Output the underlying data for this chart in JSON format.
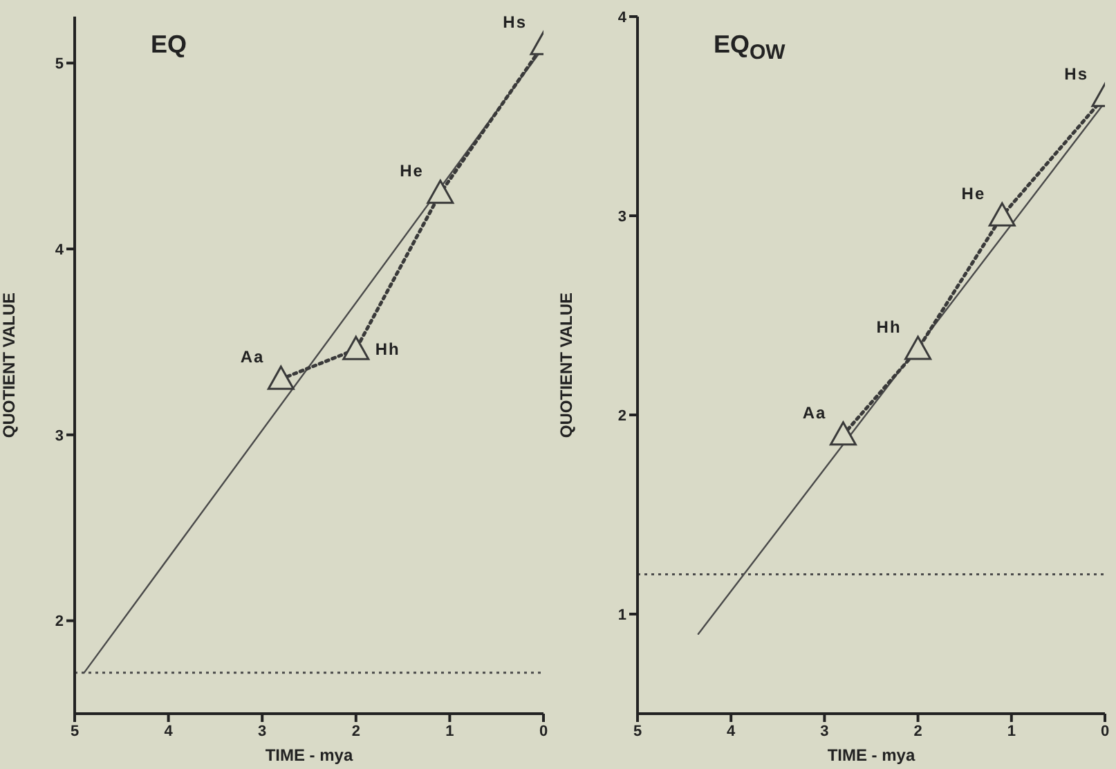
{
  "chart_data": [
    {
      "type": "line",
      "title": "EQ",
      "xlabel": "TIME - mya",
      "ylabel": "QUOTIENT VALUE",
      "xlim": [
        5,
        0
      ],
      "xticks": [
        5,
        4,
        3,
        2,
        1,
        0
      ],
      "ylim": [
        1.5,
        5.25
      ],
      "yticks": [
        2,
        3,
        4,
        5
      ],
      "series": [
        {
          "color": "#4a4a4a",
          "line_style": "solid",
          "marker": "none",
          "x": [
            4.9,
            0.05
          ],
          "values": [
            1.72,
            5.05
          ]
        },
        {
          "color": "#3a3a3a",
          "line_style": "dotted",
          "marker": "triangle",
          "x": [
            2.8,
            2.0,
            1.1,
            0
          ],
          "values": [
            3.3,
            3.46,
            4.3,
            5.1
          ]
        }
      ],
      "ref_lines": [
        {
          "axis": "y",
          "value": 1.72,
          "line_style": "dotted",
          "color": "#4a4a4a"
        }
      ],
      "annotations": [
        {
          "text": "Aa",
          "x": 2.8,
          "y": 3.3
        },
        {
          "text": "Hh",
          "x": 2.0,
          "y": 3.46
        },
        {
          "text": "He",
          "x": 1.1,
          "y": 4.3
        },
        {
          "text": "Hs",
          "x": 0,
          "y": 5.1
        }
      ]
    },
    {
      "type": "line",
      "title": "EQ$_{OW}$",
      "xlabel": "TIME - mya",
      "ylabel": "QUOTIENT VALUE",
      "xlim": [
        5,
        0
      ],
      "xticks": [
        5,
        4,
        3,
        2,
        1,
        0
      ],
      "ylim": [
        0.5,
        4
      ],
      "yticks": [
        1,
        2,
        3,
        4
      ],
      "series": [
        {
          "color": "#4a4a4a",
          "line_style": "solid",
          "marker": "none",
          "x": [
            4.35,
            0
          ],
          "values": [
            0.9,
            3.57
          ]
        },
        {
          "color": "#3a3a3a",
          "line_style": "dotted",
          "marker": "triangle",
          "x": [
            2.8,
            2.0,
            1.1,
            0
          ],
          "values": [
            1.9,
            2.33,
            3.0,
            3.6
          ]
        }
      ],
      "ref_lines": [
        {
          "axis": "y",
          "value": 1.2,
          "line_style": "dotted",
          "color": "#4a4a4a"
        }
      ],
      "annotations": [
        {
          "text": "Aa",
          "x": 2.8,
          "y": 1.9
        },
        {
          "text": "Hh",
          "x": 2.0,
          "y": 2.33
        },
        {
          "text": "He",
          "x": 1.1,
          "y": 3.0
        },
        {
          "text": "Hs",
          "x": 0,
          "y": 3.6
        }
      ]
    }
  ]
}
